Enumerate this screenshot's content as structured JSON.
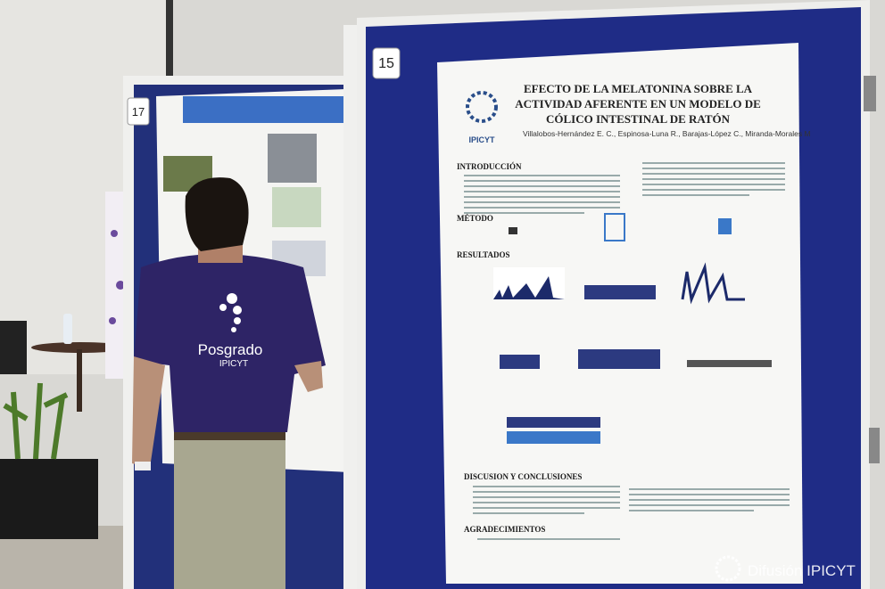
{
  "board_numbers": [
    "17",
    "15"
  ],
  "poster": {
    "logo": "IPICYT",
    "title_lines": [
      "EFECTO DE LA MELATONINA SOBRE LA",
      "ACTIVIDAD AFERENTE EN UN MODELO DE",
      "CÓLICO INTESTINAL DE RATÓN"
    ],
    "authors": "Villalobos-Hernández E. C., Espinosa-Luna R., Barajas-López C., Miranda-Morales M",
    "sections": [
      "INTRODUCCIÓN",
      "MÉTODO",
      "RESULTADOS",
      "DISCUSION Y CONCLUSIONES",
      "AGRADECIMIENTOS"
    ]
  },
  "shirt": {
    "line1": "Posgrado",
    "line2": "IPICYT"
  },
  "watermark": "Difusión IPICYT"
}
